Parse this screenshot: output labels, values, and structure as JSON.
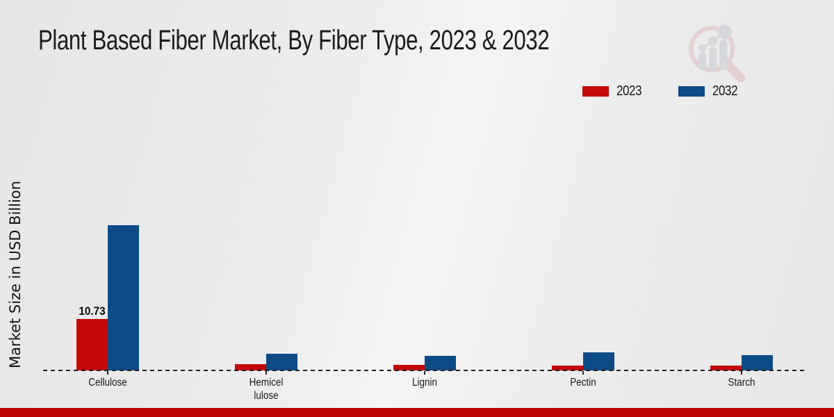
{
  "title": "Plant Based Fiber Market, By Fiber Type, 2023 & 2032",
  "y_axis_label": "Market Size in USD Billion",
  "legend": {
    "items": [
      {
        "label": "2023",
        "color": "#c40808"
      },
      {
        "label": "2032",
        "color": "#0d4b86"
      }
    ]
  },
  "colors": {
    "series_2023": "#c40808",
    "series_2032": "#0d4b86",
    "footer_bar": "#bb0302",
    "baseline": "#222222"
  },
  "logo": {
    "name": "magnifier-bar-chart-watermark"
  },
  "chart_data": {
    "type": "bar",
    "categories": [
      "Cellulose",
      "Hemicellulose",
      "Lignin",
      "Pectin",
      "Starch"
    ],
    "category_label_lines": [
      [
        "Cellulose"
      ],
      [
        "Hemicel",
        "lulose"
      ],
      [
        "Lignin"
      ],
      [
        "Pectin"
      ],
      [
        "Starch"
      ]
    ],
    "series": [
      {
        "name": "2023",
        "color": "#c40808",
        "values": [
          10.73,
          1.3,
          1.15,
          0.95,
          1.0
        ]
      },
      {
        "name": "2032",
        "color": "#0d4b86",
        "values": [
          30.3,
          3.5,
          3.05,
          3.7,
          3.2
        ]
      }
    ],
    "bar_value_labels": [
      {
        "series_index": 0,
        "category_index": 0,
        "text": "10.73"
      }
    ],
    "title": "Plant Based Fiber Market, By Fiber Type, 2023 & 2032",
    "xlabel": "",
    "ylabel": "Market Size in USD Billion",
    "ylim": [
      0,
      35
    ],
    "grid": false,
    "legend_position": "top-right",
    "x_axis_style": "dashed-zero-line"
  }
}
